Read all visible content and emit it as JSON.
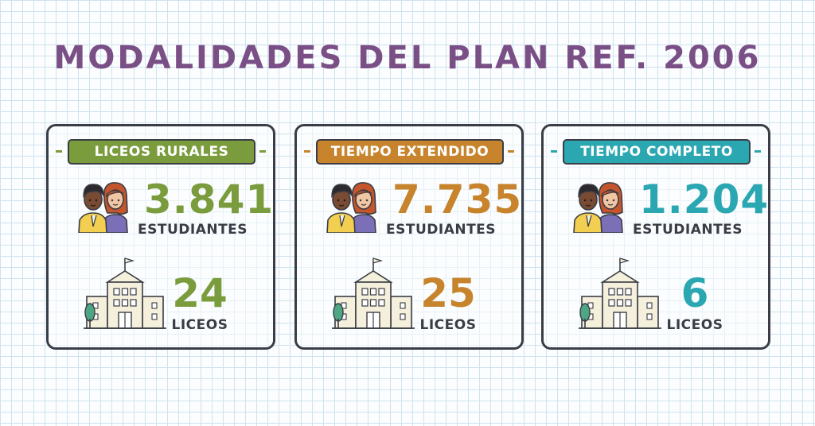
{
  "title": "MODALIDADES DEL PLAN REF. 2006",
  "colors": {
    "title": "#7a4f86",
    "rural": "#7a9c3d",
    "extendido": "#c7842d",
    "completo": "#2ba7b2",
    "outline": "#3a3d45"
  },
  "cards": [
    {
      "label": "LICEOS RURALES",
      "accent": "#7a9c3d",
      "students_value": "3.841",
      "students_unit": "ESTUDIANTES",
      "schools_value": "24",
      "schools_unit": "LICEOS"
    },
    {
      "label": "TIEMPO EXTENDIDO",
      "accent": "#c7842d",
      "students_value": "7.735",
      "students_unit": "ESTUDIANTES",
      "schools_value": "25",
      "schools_unit": "LICEOS"
    },
    {
      "label": "TIEMPO COMPLETO",
      "accent": "#2ba7b2",
      "students_value": "1.204",
      "students_unit": "ESTUDIANTES",
      "schools_value": "6",
      "schools_unit": "LICEOS"
    }
  ],
  "icons": [
    "students-icon",
    "school-building-icon"
  ]
}
